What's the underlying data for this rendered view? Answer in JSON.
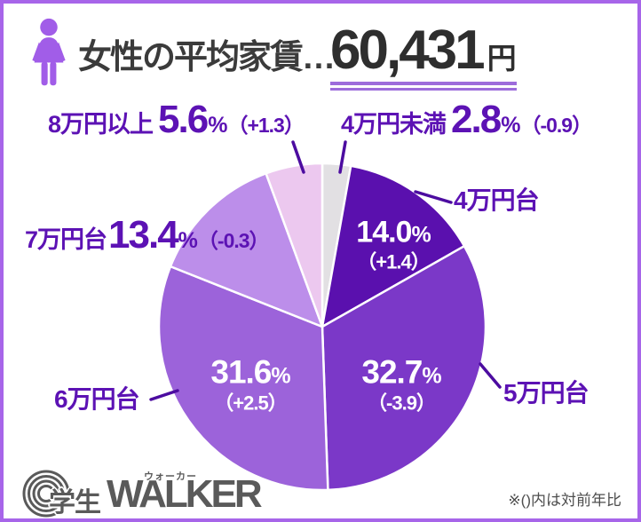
{
  "header": {
    "title": "女性の平均家賃…",
    "amount": "60,431",
    "unit": "円"
  },
  "chart_data": {
    "type": "pie",
    "title": "女性の平均家賃…60,431円",
    "value_unit": "%",
    "start_angle": "top",
    "direction": "clockwise",
    "legend_position": "callouts-around-pie",
    "note": "（）内は対前年比",
    "slices": [
      {
        "label": "4万円未満",
        "value": 2.8,
        "delta": -0.9,
        "color": "#e2e0e3"
      },
      {
        "label": "4万円台",
        "value": 14.0,
        "delta": 1.4,
        "color": "#5a10ae"
      },
      {
        "label": "5万円台",
        "value": 32.7,
        "delta": -3.9,
        "color": "#7b38c8"
      },
      {
        "label": "6万円台",
        "value": 31.6,
        "delta": 2.5,
        "color": "#9c63da"
      },
      {
        "label": "7万円台",
        "value": 13.4,
        "delta": -0.3,
        "color": "#bc8eea"
      },
      {
        "label": "8万円以上",
        "value": 5.6,
        "delta": 1.3,
        "color": "#ecc8ef"
      }
    ]
  },
  "callouts": {
    "man8": {
      "name": "8万円以上",
      "pct": "5.6",
      "unit": "%",
      "delta": "（+1.3）"
    },
    "under4": {
      "name": "4万円未満",
      "pct": "2.8",
      "unit": "%",
      "delta": "（-0.9）"
    },
    "man4": {
      "name": "4万円台"
    },
    "man7": {
      "name": "7万円台",
      "pct": "13.4",
      "unit": "%",
      "delta": "（-0.3）"
    },
    "man6": {
      "name": "6万円台"
    },
    "man5": {
      "name": "5万円台"
    }
  },
  "inner_labels": {
    "man4": {
      "pct": "14.0",
      "unit": "%",
      "delta": "（+1.4）"
    },
    "man5": {
      "pct": "32.7",
      "unit": "%",
      "delta": "（-3.9）"
    },
    "man6": {
      "pct": "31.6",
      "unit": "%",
      "delta": "（+2.5）"
    }
  },
  "footer": {
    "logo_text": "学生",
    "logo_main": "WALKER",
    "logo_kana": "ウォーカー",
    "note": "※()内は対前年比"
  },
  "colors": {
    "border": "#a765e9",
    "accent_text": "#5c12b4",
    "underline": "#9d6cdb",
    "female_icon": "#a15de8",
    "title_text": "#3b3b3b",
    "leader_line": "#4c0ca0",
    "logo_gray": "#5a5a5a"
  }
}
